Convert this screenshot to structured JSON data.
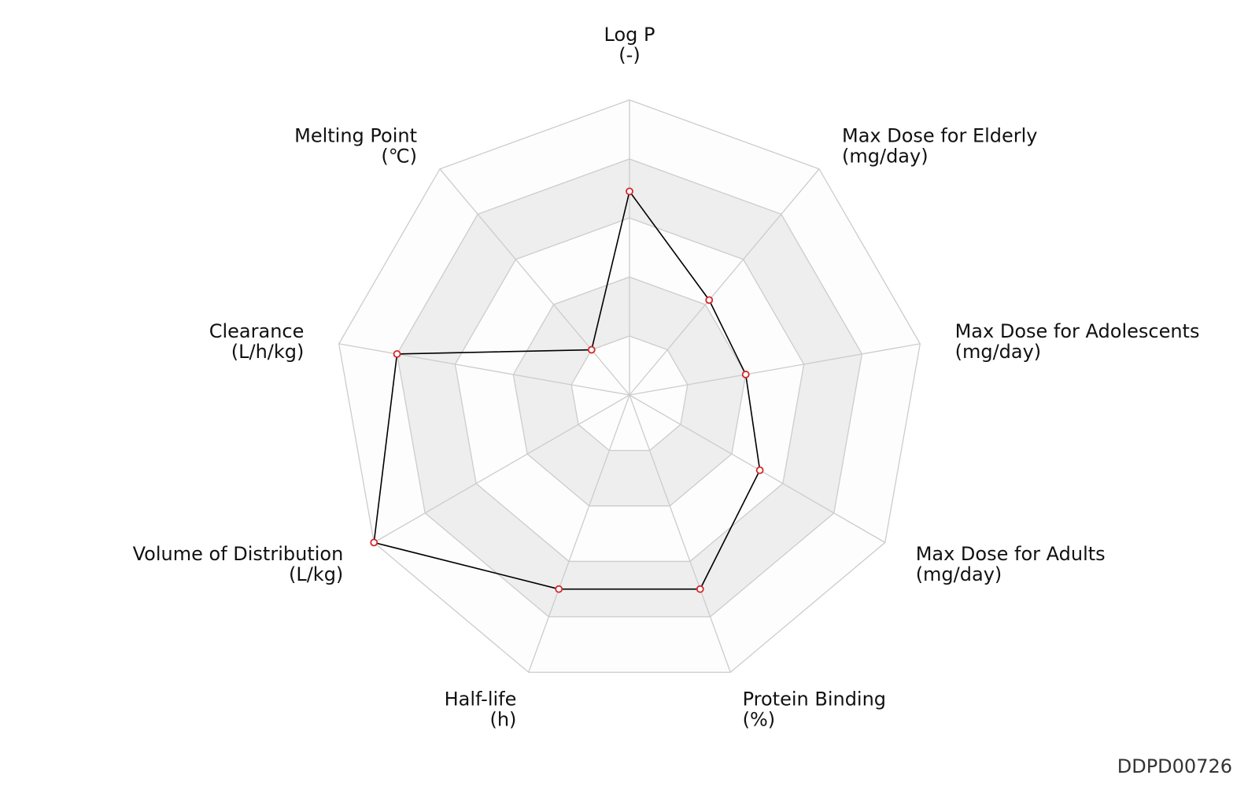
{
  "chart_data": {
    "type": "radar",
    "axes": [
      {
        "name": "Log P",
        "unit": "(-)",
        "value": 0.69
      },
      {
        "name": "Max Dose for Elderly",
        "unit": "(mg/day)",
        "value": 0.42
      },
      {
        "name": "Max Dose for Adolescents",
        "unit": "(mg/day)",
        "value": 0.4
      },
      {
        "name": "Max Dose for Adults",
        "unit": "(mg/day)",
        "value": 0.51
      },
      {
        "name": "Protein Binding",
        "unit": "(%)",
        "value": 0.7
      },
      {
        "name": "Half-life",
        "unit": "(h)",
        "value": 0.7
      },
      {
        "name": "Volume of Distribution",
        "unit": "(L/kg)",
        "value": 1.0
      },
      {
        "name": "Clearance",
        "unit": "(L/h/kg)",
        "value": 0.8
      },
      {
        "name": "Melting Point",
        "unit": "(℃)",
        "value": 0.2
      }
    ],
    "rings": 5,
    "range": [
      0,
      1
    ],
    "colors": {
      "grid": "#cccccc",
      "band_light": "#fdfdfd",
      "band_dark": "#eeeeee",
      "line": "#000000",
      "marker_edge": "#d62728",
      "marker_fill": "#ffffff"
    }
  },
  "footer_id": "DDPD00726"
}
